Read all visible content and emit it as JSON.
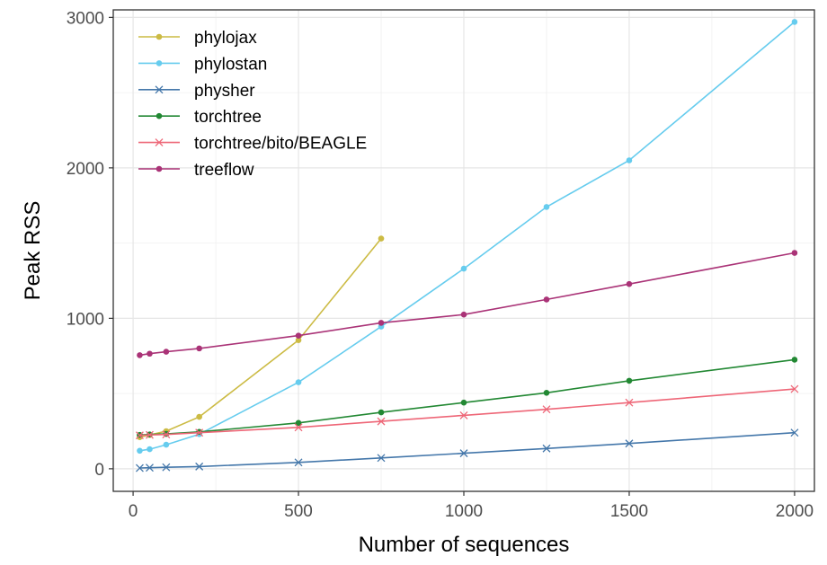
{
  "chart_data": {
    "type": "line",
    "xlabel": "Number of sequences",
    "ylabel": "Peak RSS",
    "xlim": [
      -60,
      2060
    ],
    "ylim": [
      -150,
      3050
    ],
    "xticks": [
      0,
      500,
      1000,
      1500,
      2000
    ],
    "xtick_labels": [
      "0",
      "500",
      "1000",
      "1500",
      "2000"
    ],
    "yticks": [
      0,
      1000,
      2000,
      3000
    ],
    "ytick_labels": [
      "0",
      "1000",
      "2000",
      "3000"
    ],
    "grid": true,
    "legend_position": "top-left inside",
    "series": [
      {
        "name": "phylojax",
        "color": "#CCBB44",
        "marker": "dot",
        "x": [
          20,
          50,
          100,
          200,
          500,
          750
        ],
        "y": [
          210,
          225,
          250,
          345,
          855,
          1530
        ]
      },
      {
        "name": "phylostan",
        "color": "#66CCEE",
        "marker": "dot",
        "x": [
          20,
          50,
          100,
          200,
          500,
          750,
          1000,
          1250,
          1500,
          2000
        ],
        "y": [
          120,
          130,
          160,
          230,
          575,
          945,
          1330,
          1740,
          2050,
          2970
        ]
      },
      {
        "name": "physher",
        "color": "#4477AA",
        "marker": "x",
        "x": [
          20,
          50,
          100,
          200,
          500,
          750,
          1000,
          1250,
          1500,
          2000
        ],
        "y": [
          5,
          7,
          10,
          15,
          42,
          72,
          103,
          135,
          168,
          240
        ]
      },
      {
        "name": "torchtree",
        "color": "#228833",
        "marker": "dot",
        "x": [
          20,
          50,
          100,
          200,
          500,
          750,
          1000,
          1250,
          1500,
          2000
        ],
        "y": [
          225,
          228,
          232,
          245,
          305,
          375,
          440,
          505,
          585,
          725
        ]
      },
      {
        "name": "torchtree/bito/BEAGLE",
        "color": "#EE6677",
        "marker": "x",
        "x": [
          20,
          50,
          100,
          200,
          500,
          750,
          1000,
          1250,
          1500,
          2000
        ],
        "y": [
          222,
          225,
          228,
          240,
          275,
          315,
          355,
          395,
          440,
          530
        ]
      },
      {
        "name": "treeflow",
        "color": "#AA3377",
        "marker": "dot",
        "x": [
          20,
          50,
          100,
          200,
          500,
          750,
          1000,
          1250,
          1500,
          2000
        ],
        "y": [
          755,
          765,
          778,
          800,
          885,
          970,
          1025,
          1125,
          1228,
          1435
        ]
      }
    ]
  }
}
